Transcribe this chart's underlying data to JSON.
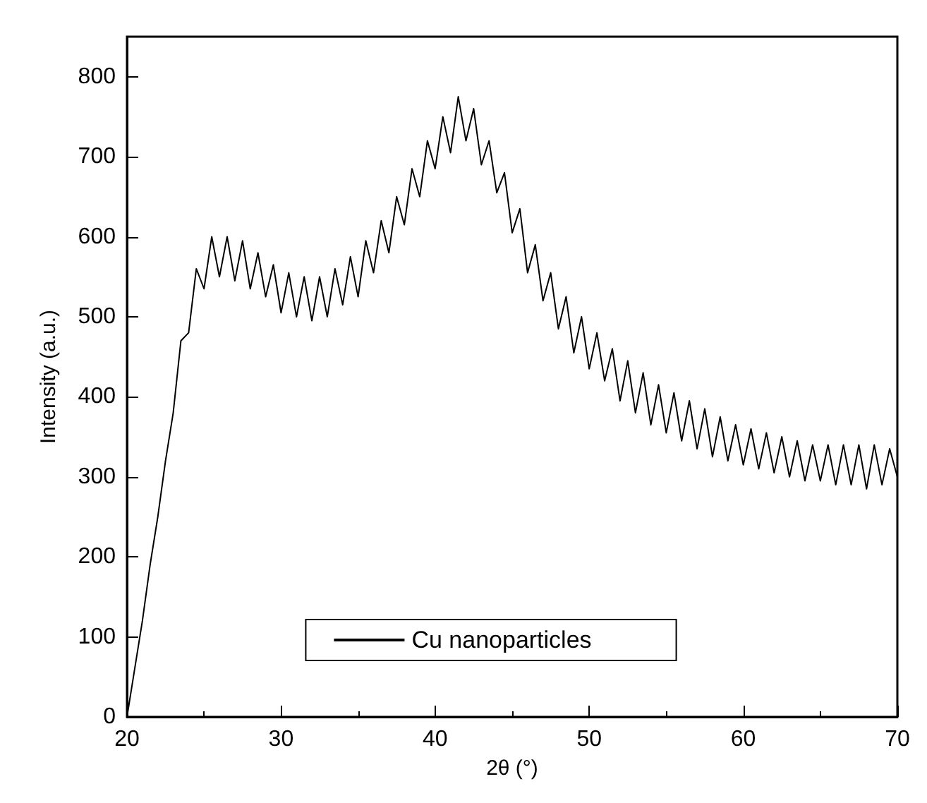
{
  "chart_data": {
    "type": "line",
    "xlabel": "2θ (°)",
    "ylabel": "Intensity (a.u.)",
    "xlim": [
      20,
      70
    ],
    "xticks": [
      20,
      30,
      40,
      50,
      60,
      70
    ],
    "ylim": [
      0,
      850
    ],
    "yticks": [
      0,
      100,
      200,
      300,
      400,
      500,
      600,
      700,
      800
    ],
    "grid": false,
    "legend": "bottom",
    "marker": "none",
    "line_style": "solid",
    "series": [
      {
        "name": "Cu nanoparticles",
        "color": "#000000",
        "x": [
          20,
          20.5,
          21,
          21.5,
          22,
          22.5,
          23,
          23.5,
          24,
          24.5,
          25,
          25.5,
          26,
          26.5,
          27,
          27.5,
          28,
          28.5,
          29,
          29.5,
          30,
          30.5,
          31,
          31.5,
          32,
          32.5,
          33,
          33.5,
          34,
          34.5,
          35,
          35.5,
          36,
          36.5,
          37,
          37.5,
          38,
          38.5,
          39,
          39.5,
          40,
          40.5,
          41,
          41.5,
          42,
          42.5,
          43,
          43.5,
          44,
          44.5,
          45,
          45.5,
          46,
          46.5,
          47,
          47.5,
          48,
          48.5,
          49,
          49.5,
          50,
          50.5,
          51,
          51.5,
          52,
          52.5,
          53,
          53.5,
          54,
          54.5,
          55,
          55.5,
          56,
          56.5,
          57,
          57.5,
          58,
          58.5,
          59,
          59.5,
          60,
          60.5,
          61,
          61.5,
          62,
          62.5,
          63,
          63.5,
          64,
          64.5,
          65,
          65.5,
          66,
          66.5,
          67,
          67.5,
          68,
          68.5,
          69,
          69.5,
          70
        ],
        "values": [
          0,
          60,
          120,
          190,
          250,
          320,
          380,
          470,
          480,
          560,
          535,
          600,
          550,
          600,
          545,
          595,
          535,
          580,
          525,
          565,
          505,
          555,
          500,
          550,
          495,
          550,
          500,
          560,
          515,
          575,
          525,
          595,
          555,
          620,
          580,
          650,
          615,
          685,
          650,
          720,
          685,
          750,
          705,
          775,
          720,
          760,
          690,
          720,
          655,
          680,
          605,
          635,
          555,
          590,
          520,
          555,
          485,
          525,
          455,
          500,
          435,
          480,
          420,
          460,
          395,
          445,
          380,
          430,
          365,
          415,
          355,
          405,
          345,
          395,
          335,
          385,
          325,
          375,
          320,
          365,
          315,
          360,
          310,
          355,
          305,
          350,
          300,
          345,
          295,
          340,
          295,
          340,
          290,
          340,
          290,
          340,
          285,
          340,
          290,
          335,
          300
        ]
      }
    ]
  }
}
